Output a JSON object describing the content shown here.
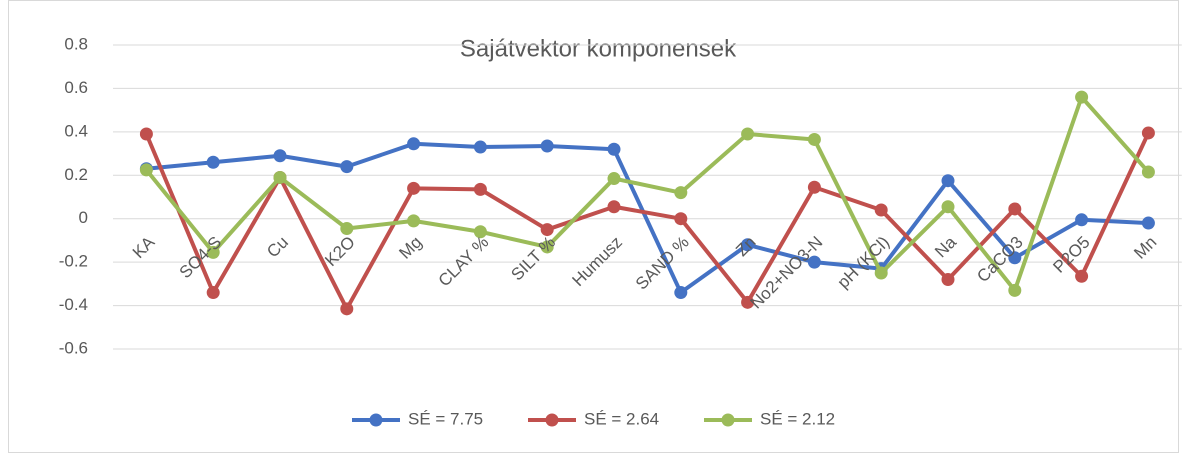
{
  "chart_data": {
    "type": "line",
    "title": "Sajátvektor komponensek",
    "categories": [
      "KA",
      "SO4-S",
      "Cu",
      "K2O",
      "Mg",
      "CLAY %",
      "SILT %",
      "Humusz",
      "SAND %",
      "Zn",
      "No2+NO3-N",
      "pH (KCl)",
      "Na",
      "CaCO3",
      "P2O5",
      "Mn"
    ],
    "series": [
      {
        "name": "SÉ = 7.75",
        "color": "#4472c4",
        "values": [
          0.23,
          0.26,
          0.29,
          0.24,
          0.345,
          0.33,
          0.335,
          0.32,
          -0.34,
          -0.12,
          -0.2,
          -0.23,
          0.175,
          -0.18,
          -0.005,
          -0.02
        ]
      },
      {
        "name": "SÉ = 2.64",
        "color": "#c0504d",
        "values": [
          0.39,
          -0.34,
          0.19,
          -0.415,
          0.14,
          0.135,
          -0.05,
          0.055,
          0.0,
          -0.385,
          0.145,
          0.04,
          -0.28,
          0.045,
          -0.265,
          0.395
        ]
      },
      {
        "name": "SÉ = 2.12",
        "color": "#9bbb59",
        "values": [
          0.225,
          -0.155,
          0.19,
          -0.045,
          -0.01,
          -0.06,
          -0.13,
          0.185,
          0.12,
          0.39,
          0.365,
          -0.25,
          0.055,
          -0.33,
          0.56,
          0.215
        ]
      }
    ],
    "ylim": [
      -0.6,
      0.8
    ],
    "yticks": [
      -0.6,
      -0.4,
      -0.2,
      0,
      0.2,
      0.4,
      0.6,
      0.8
    ],
    "grid": true,
    "legend": "bottom"
  }
}
